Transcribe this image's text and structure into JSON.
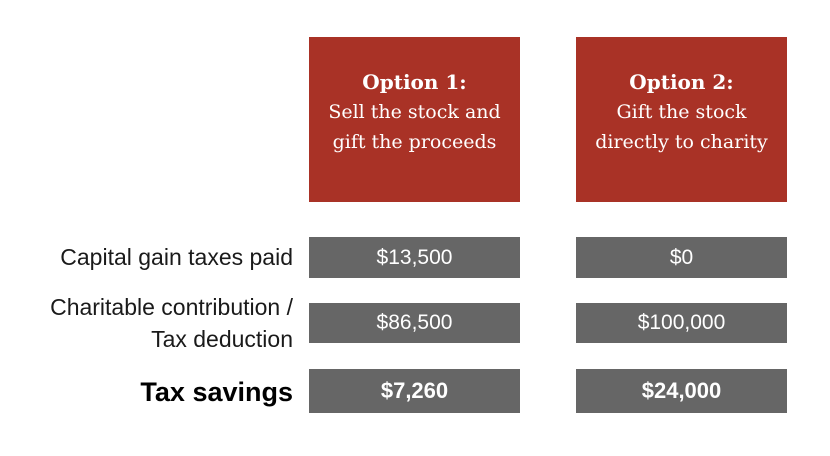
{
  "options": [
    {
      "title": "Option 1:",
      "line1": "Sell the stock and",
      "line2": "gift the proceeds"
    },
    {
      "title": "Option 2:",
      "line1": "Gift the stock",
      "line2": "directly to charity"
    }
  ],
  "rows": [
    {
      "label": "Capital gain taxes paid",
      "values": [
        "$13,500",
        "$0"
      ]
    },
    {
      "label_line1": "Charitable contribution /",
      "label_line2": "Tax deduction",
      "values": [
        "$86,500",
        "$100,000"
      ]
    },
    {
      "label": "Tax savings",
      "values": [
        "$7,260",
        "$24,000"
      ]
    }
  ],
  "colors": {
    "header": "#a93226",
    "cell": "#666666"
  }
}
